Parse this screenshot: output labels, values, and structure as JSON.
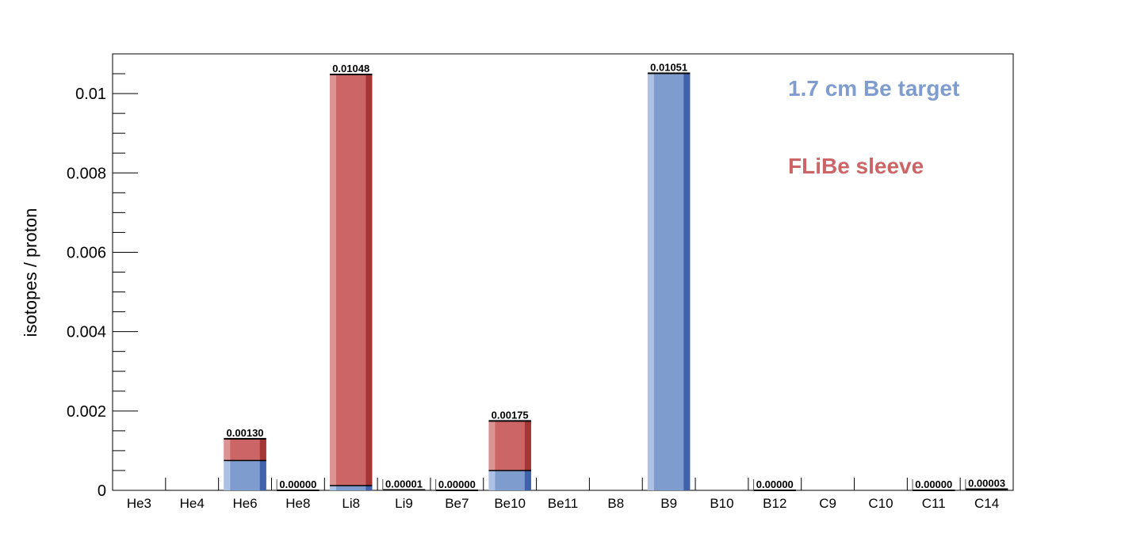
{
  "chart_data": {
    "type": "bar",
    "stacked": true,
    "title": "",
    "xlabel": "",
    "ylabel": "isotopes / proton",
    "ylim": [
      0,
      0.011
    ],
    "yticks": [
      0,
      0.002,
      0.004,
      0.006,
      0.008,
      0.01
    ],
    "ytick_labels": [
      "0",
      "0.002",
      "0.004",
      "0.006",
      "0.008",
      "0.01"
    ],
    "categories": [
      "He3",
      "He4",
      "He6",
      "He8",
      "Li8",
      "Li9",
      "Be7",
      "Be10",
      "Be11",
      "B8",
      "B9",
      "B10",
      "B12",
      "C9",
      "C10",
      "C11",
      "C14"
    ],
    "series": [
      {
        "name": "1.7 cm Be target",
        "color": "#7f9ccf",
        "values": [
          0,
          0,
          0.00075,
          0,
          0.00012,
          5e-06,
          0,
          0.0005,
          0,
          0,
          0.01051,
          0,
          0,
          0,
          0,
          0,
          1e-05
        ]
      },
      {
        "name": "FLiBe sleeve",
        "color": "#cc6666",
        "values": [
          0,
          0,
          0.00055,
          0,
          0.01036,
          5e-06,
          0,
          0.00125,
          0,
          0,
          0,
          0,
          0,
          0,
          0,
          0,
          2e-05
        ]
      }
    ],
    "totals": [
      0,
      0,
      0.0013,
      0,
      0.01048,
      1e-05,
      0,
      0.00175,
      0,
      0,
      0.01051,
      0,
      0,
      0,
      0,
      0,
      3e-05
    ],
    "value_labels": [
      "",
      "",
      "0.00130",
      "0.00000",
      "0.01048",
      "0.00001",
      "0.00000",
      "0.00175",
      "",
      "",
      "0.01051",
      "",
      "0.00000",
      "",
      "",
      "0.00000",
      "0.00003"
    ],
    "legend": {
      "placement": "top-right",
      "entries": [
        {
          "text": "1.7 cm Be target",
          "color": "#7f9ccf"
        },
        {
          "text": "FLiBe sleeve",
          "color": "#cc6666"
        }
      ]
    },
    "grid": false
  }
}
